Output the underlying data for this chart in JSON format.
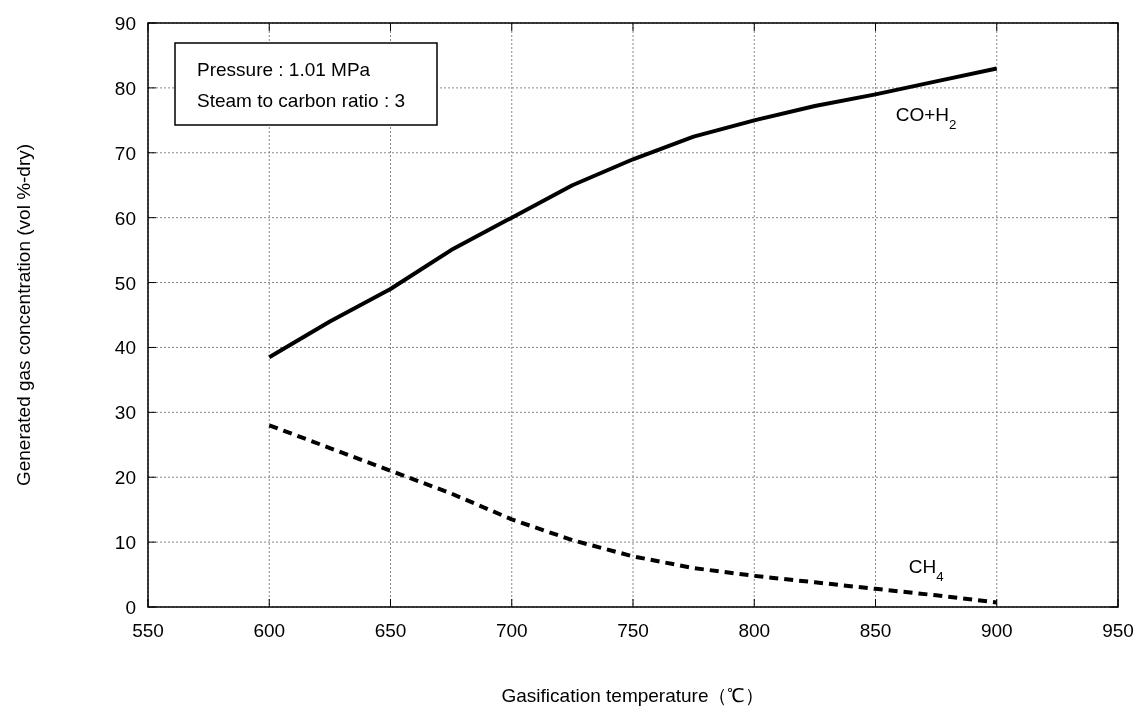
{
  "chart_data": {
    "type": "line",
    "xlabel": "Gasification  temperature（℃）",
    "ylabel": "Generated gas concentration (vol %-dry)",
    "xlim": [
      550,
      950
    ],
    "ylim": [
      0,
      90
    ],
    "xticks": [
      550,
      600,
      650,
      700,
      750,
      800,
      850,
      900,
      950
    ],
    "yticks": [
      0,
      10,
      20,
      30,
      40,
      50,
      60,
      70,
      80,
      90
    ],
    "grid": true,
    "marker": "none",
    "annotations": [
      "Pressure : 1.01 MPa",
      "Steam to carbon ratio : 3"
    ],
    "series": [
      {
        "name": "CO+H$_{2}$",
        "color": "#000000",
        "line_style": "solid",
        "x": [
          600,
          625,
          650,
          675,
          700,
          725,
          750,
          775,
          800,
          825,
          850,
          875,
          900
        ],
        "values": [
          38.5,
          44,
          49,
          55,
          60,
          65,
          69,
          72.5,
          75,
          77.2,
          79,
          81,
          83
        ]
      },
      {
        "name": "CH$_{4}$",
        "color": "#000000",
        "line_style": "dashed",
        "x": [
          600,
          625,
          650,
          675,
          700,
          725,
          750,
          775,
          800,
          825,
          850,
          875,
          900
        ],
        "values": [
          28,
          24.5,
          21,
          17.5,
          13.5,
          10.3,
          7.8,
          6,
          4.8,
          3.8,
          2.8,
          1.8,
          0.7
        ]
      }
    ]
  }
}
